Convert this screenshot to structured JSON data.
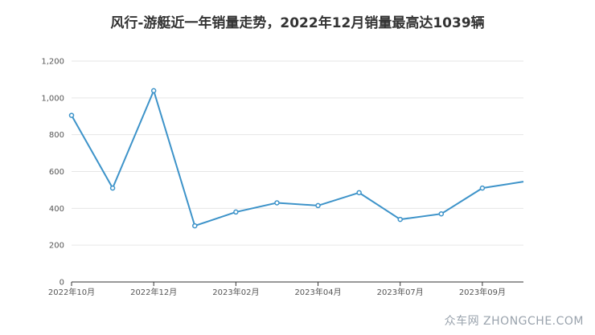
{
  "chart_data": {
    "type": "line",
    "title": "风行-游艇近一年销量走势，2022年12月销量最高达1039辆",
    "x": [
      "2022年10月",
      "2022年11月",
      "2022年12月",
      "2023年01月",
      "2023年02月",
      "2023年03月",
      "2023年04月",
      "2023年05月",
      "2023年07月",
      "2023年08月",
      "2023年09月",
      "2023年10月"
    ],
    "x_tick_labels": [
      "2022年10月",
      "2022年12月",
      "2023年02月",
      "2023年04月",
      "2023年07月",
      "2023年09月"
    ],
    "series": [
      {
        "values": [
          905,
          510,
          1039,
          305,
          380,
          430,
          415,
          485,
          340,
          370,
          510,
          545
        ]
      }
    ],
    "ylim": [
      0,
      1200
    ],
    "yticks": [
      "0",
      "200",
      "400",
      "600",
      "800",
      "1,000",
      "1,200"
    ],
    "grid": true,
    "line_color": "#3d93c9"
  },
  "watermark": "众车网 ZHONGCHE.COM"
}
